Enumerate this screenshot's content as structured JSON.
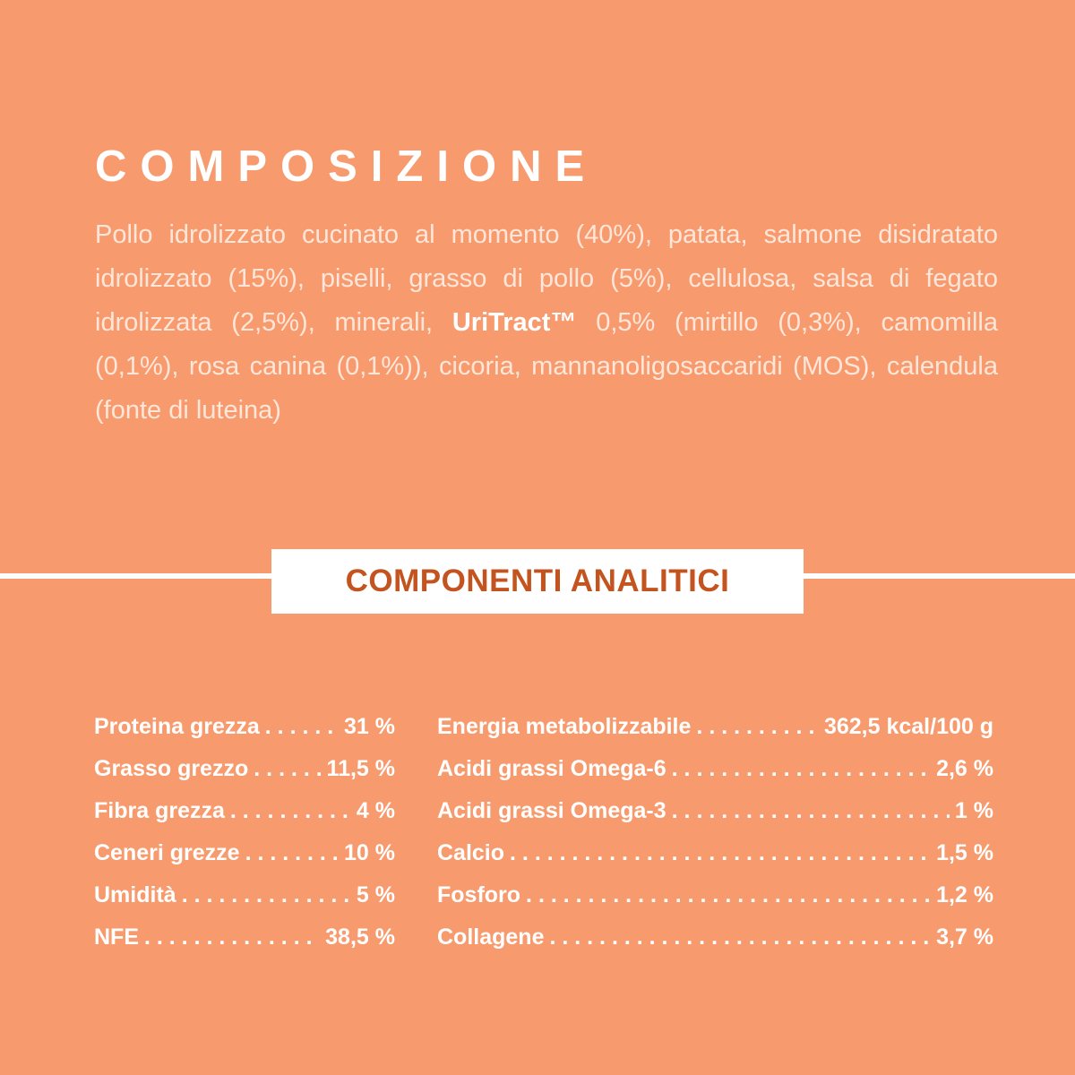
{
  "composition": {
    "title": "COMPOSIZIONE",
    "text_before": "Pollo idrolizzato cucinato al momento (40%), patata, salmone disidratato idrolizzato (15%), piselli, grasso di pollo (5%), cellulosa, salsa di fegato  idrolizzata (2,5%), minerali, ",
    "brand": "UriTract™",
    "text_after": " 0,5% (mirtillo (0,3%), camomilla (0,1%), rosa canina (0,1%)), cicoria, mannanoligosaccaridi (MOS), calendula (fonte di luteina)"
  },
  "analytics": {
    "title": "COMPONENTI ANALITICI",
    "left": [
      {
        "label": "Proteina grezza",
        "value": "31 %"
      },
      {
        "label": "Grasso grezzo",
        "value": "11,5 %"
      },
      {
        "label": "Fibra grezza",
        "value": "4 %"
      },
      {
        "label": "Ceneri grezze",
        "value": "10 %"
      },
      {
        "label": "Umidità",
        "value": "5 %"
      },
      {
        "label": "NFE",
        "value": "38,5 %"
      }
    ],
    "right": [
      {
        "label": "Energia metabolizzabile",
        "value": "362,5 kcal/100 g"
      },
      {
        "label": "Acidi grassi Omega-6",
        "value": "2,6 %"
      },
      {
        "label": "Acidi grassi Omega-3",
        "value": "1 %"
      },
      {
        "label": "Calcio",
        "value": "1,5 %"
      },
      {
        "label": "Fosforo",
        "value": "1,2 %"
      },
      {
        "label": "Collagene",
        "value": "3,7 %"
      }
    ]
  },
  "colors": {
    "background": "#f79b6e",
    "accent": "#c4541f",
    "text": "#ffffff"
  }
}
